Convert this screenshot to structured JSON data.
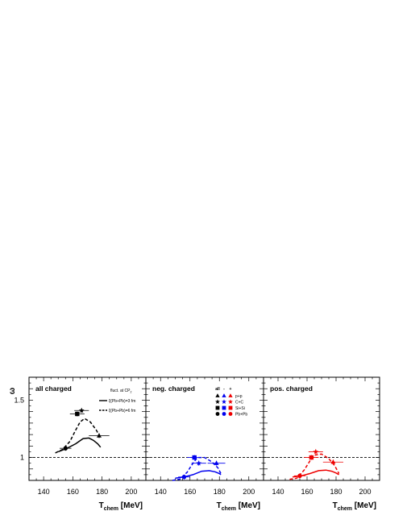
{
  "chart_data": {
    "type": "scatter",
    "ylabel": "ω",
    "xlabel_main": "T",
    "xlabel_sub": "chem",
    "xlabel_unit": "[MeV]",
    "xlim": [
      130,
      210
    ],
    "ylim": [
      0.8,
      1.7
    ],
    "x_ticks": [
      "140",
      "160",
      "180",
      "200"
    ],
    "y_ticks": [
      "1",
      "1.5"
    ],
    "reference_line": 1,
    "legend_curves": {
      "header": "fluct. at CP",
      "header_sub": "2",
      "items": [
        {
          "style": "solid",
          "label_pre": "ξ(Pb+Pb)=3 fm"
        },
        {
          "style": "dashed",
          "label_pre": "ξ(Pb+Pb)=6 fm"
        }
      ]
    },
    "legend_markers": {
      "columns": [
        "all",
        "-",
        "+"
      ],
      "rows": [
        {
          "marker": "triangle",
          "label": "p+p"
        },
        {
          "marker": "star",
          "label": "C+C"
        },
        {
          "marker": "square",
          "label": "Si+Si"
        },
        {
          "marker": "circle",
          "label": "Pb+Pb"
        }
      ]
    },
    "panels": [
      {
        "title": "all charged",
        "color": "#000000",
        "points": [
          {
            "system": "p+p",
            "marker": "triangle",
            "x": 178,
            "y": 1.19,
            "xerr": 7
          },
          {
            "system": "C+C",
            "marker": "star",
            "x": 166,
            "y": 1.41,
            "xerr": 5
          },
          {
            "system": "Si+Si",
            "marker": "square",
            "x": 163,
            "y": 1.38,
            "xerr": 5
          },
          {
            "system": "Pb+Pb",
            "marker": "circle",
            "x": 155,
            "y": 1.08,
            "xerr": 4
          }
        ],
        "solid_curve": {
          "x": [
            150,
            156,
            162,
            167,
            171,
            174,
            177,
            179
          ],
          "y": [
            1.05,
            1.08,
            1.12,
            1.165,
            1.17,
            1.15,
            1.12,
            1.09
          ]
        },
        "dashed_curve": {
          "x": [
            148,
            153,
            158,
            162,
            165,
            168,
            172,
            176,
            179
          ],
          "y": [
            1.04,
            1.07,
            1.14,
            1.24,
            1.31,
            1.34,
            1.31,
            1.24,
            1.17
          ]
        }
      },
      {
        "title": "neg. charged",
        "color": "#0000ee",
        "points": [
          {
            "system": "p+p",
            "marker": "triangle",
            "x": 178,
            "y": 0.95,
            "xerr": 6
          },
          {
            "system": "C+C",
            "marker": "star",
            "x": 166,
            "y": 0.95,
            "xerr": 5
          },
          {
            "system": "Si+Si",
            "marker": "square",
            "x": 163,
            "y": 1.0,
            "xerr": 5
          },
          {
            "system": "Pb+Pb",
            "marker": "circle",
            "x": 156,
            "y": 0.83,
            "xerr": 4
          }
        ],
        "solid_curve": {
          "x": [
            150,
            156,
            162,
            168,
            173,
            177,
            180,
            181
          ],
          "y": [
            0.82,
            0.83,
            0.85,
            0.88,
            0.885,
            0.875,
            0.86,
            0.85
          ]
        },
        "dashed_curve": {
          "x": [
            148,
            153,
            158,
            162,
            165,
            170,
            175,
            179,
            181
          ],
          "y": [
            0.8,
            0.81,
            0.87,
            0.95,
            1.0,
            1.0,
            0.96,
            0.91,
            0.86
          ]
        }
      },
      {
        "title": "pos. charged",
        "color": "#ee0000",
        "points": [
          {
            "system": "p+p",
            "marker": "triangle",
            "x": 178,
            "y": 0.96,
            "xerr": 7
          },
          {
            "system": "C+C",
            "marker": "star",
            "x": 166,
            "y": 1.05,
            "xerr": 5
          },
          {
            "system": "Si+Si",
            "marker": "square",
            "x": 163,
            "y": 1.0,
            "xerr": 5
          },
          {
            "system": "Pb+Pb",
            "marker": "circle",
            "x": 155,
            "y": 0.84,
            "xerr": 4
          }
        ],
        "solid_curve": {
          "x": [
            150,
            156,
            162,
            168,
            173,
            177,
            180,
            182
          ],
          "y": [
            0.83,
            0.84,
            0.86,
            0.885,
            0.89,
            0.88,
            0.865,
            0.85
          ]
        },
        "dashed_curve": {
          "x": [
            148,
            153,
            158,
            162,
            165,
            170,
            175,
            179,
            182
          ],
          "y": [
            0.81,
            0.82,
            0.89,
            0.97,
            1.02,
            1.03,
            0.99,
            0.93,
            0.86
          ]
        }
      }
    ]
  }
}
